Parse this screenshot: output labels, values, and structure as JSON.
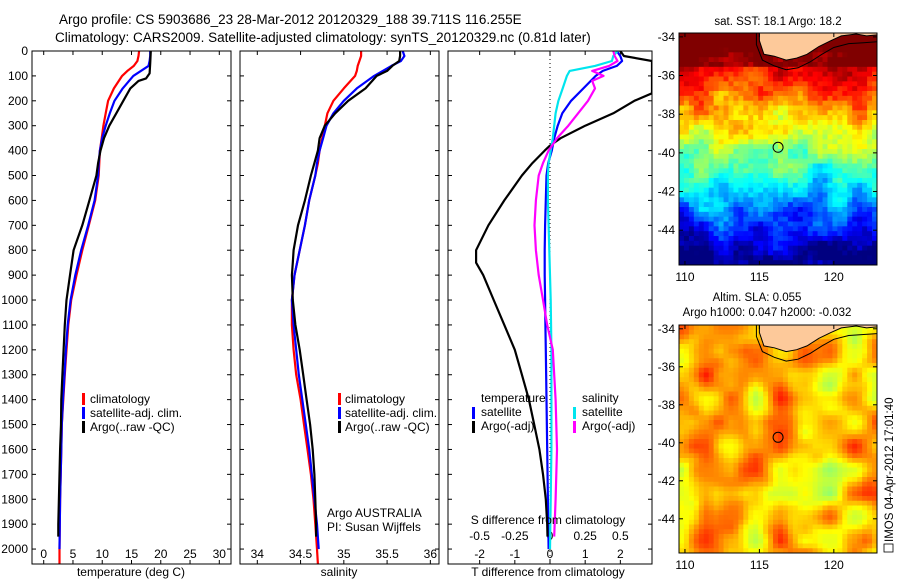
{
  "header": {
    "line1": "Argo profile: CS 5903686_23 28-Mar-2012 20120329_188 39.711S 116.255E",
    "line2": "Climatology: CARS2009. Satellite-adjusted climatology: synTS_20120329.nc (0.81d later)"
  },
  "colors": {
    "climatology": "#ff0000",
    "satellite": "#0000ff",
    "argo": "#000000",
    "sal_satellite": "#00e5ee",
    "sal_argo": "#ff00ff",
    "land": "#fdc99a"
  },
  "chart_data": [
    {
      "id": "temperature",
      "type": "line",
      "xlabel": "temperature (deg C)",
      "ylabel": "",
      "xlim": [
        -2,
        32
      ],
      "ylim": [
        2060,
        0
      ],
      "xticks": [
        0,
        5,
        10,
        15,
        20,
        25,
        30
      ],
      "yticks": [
        0,
        100,
        200,
        300,
        400,
        500,
        600,
        700,
        800,
        900,
        1000,
        1100,
        1200,
        1300,
        1400,
        1500,
        1600,
        1700,
        1800,
        1900,
        2000
      ],
      "legend": {
        "placement": "center",
        "entries": [
          "climatology",
          "satellite-adj. clim.",
          "Argo(..raw -QC)"
        ]
      },
      "series": [
        {
          "name": "climatology",
          "color_key": "climatology",
          "depth": [
            0,
            20,
            40,
            60,
            80,
            100,
            150,
            200,
            250,
            300,
            350,
            400,
            450,
            500,
            600,
            700,
            800,
            900,
            1000,
            1100,
            1200,
            1300,
            1400,
            1500,
            1600,
            1700,
            1800,
            1900,
            2000,
            2060
          ],
          "values": [
            16.3,
            16.2,
            16.0,
            15.4,
            14.3,
            13.4,
            12.0,
            11.0,
            10.6,
            10.2,
            9.9,
            9.6,
            9.5,
            9.4,
            8.8,
            7.7,
            6.6,
            5.6,
            4.7,
            4.2,
            3.9,
            3.6,
            3.35,
            3.1,
            3.0,
            2.9,
            2.8,
            2.75,
            2.7,
            2.7
          ]
        },
        {
          "name": "satellite-adj. clim.",
          "color_key": "satellite",
          "depth": [
            0,
            20,
            40,
            60,
            80,
            100,
            150,
            200,
            250,
            300,
            350,
            400,
            450,
            500,
            600,
            700,
            800,
            900,
            1000,
            1100,
            1200,
            1300,
            1400,
            1500,
            1600,
            1700,
            1800,
            1900,
            2000
          ],
          "values": [
            18.2,
            18.2,
            18.1,
            17.9,
            16.6,
            15.3,
            13.5,
            12.1,
            11.3,
            10.6,
            10.0,
            9.6,
            9.4,
            9.3,
            8.7,
            7.6,
            6.4,
            5.4,
            4.6,
            4.1,
            3.8,
            3.55,
            3.3,
            3.1,
            3.0,
            2.9,
            2.8,
            2.75,
            2.7
          ]
        },
        {
          "name": "Argo(..raw -QC)",
          "color_key": "argo",
          "depth": [
            0,
            50,
            90,
            110,
            120,
            150,
            200,
            250,
            300,
            350,
            400,
            450,
            500,
            600,
            700,
            780,
            800,
            900,
            1000,
            1100,
            1200,
            1300,
            1400,
            1500,
            1600,
            1700,
            1800,
            1900,
            1950
          ],
          "values": [
            18.3,
            18.2,
            18.1,
            17.5,
            16.2,
            14.8,
            13.6,
            12.4,
            11.2,
            10.3,
            9.7,
            9.3,
            9.0,
            7.8,
            6.6,
            5.4,
            5.1,
            4.5,
            3.9,
            3.6,
            3.4,
            3.2,
            3.0,
            2.95,
            2.8,
            2.7,
            2.6,
            2.5,
            2.5
          ]
        }
      ]
    },
    {
      "id": "salinity",
      "type": "line",
      "xlabel": "salinity",
      "xlim": [
        33.8,
        36.1
      ],
      "ylim": [
        2060,
        0
      ],
      "xticks": [
        34,
        34.5,
        35,
        35.5,
        36
      ],
      "annotation": [
        "Argo AUSTRALIA",
        "PI: Susan Wijffels"
      ],
      "legend": {
        "placement": "center-right",
        "entries": [
          "climatology",
          "satellite-adj. clim.",
          "Argo(..raw -QC)"
        ]
      },
      "series": [
        {
          "name": "climatology",
          "color_key": "climatology",
          "depth": [
            0,
            20,
            40,
            60,
            80,
            100,
            150,
            200,
            250,
            300,
            350,
            400,
            450,
            500,
            600,
            700,
            800,
            900,
            1000,
            1100,
            1200,
            1300,
            1400,
            1500,
            1600,
            1700,
            1800,
            1900,
            2000,
            2060
          ],
          "values": [
            35.2,
            35.2,
            35.18,
            35.16,
            35.15,
            35.13,
            35.0,
            34.88,
            34.81,
            34.78,
            34.75,
            34.72,
            34.7,
            34.67,
            34.6,
            34.55,
            34.49,
            34.43,
            34.4,
            34.4,
            34.42,
            34.45,
            34.5,
            34.54,
            34.58,
            34.62,
            34.65,
            34.67,
            34.69,
            34.7
          ]
        },
        {
          "name": "satellite-adj. clim.",
          "color_key": "satellite",
          "depth": [
            0,
            20,
            40,
            60,
            80,
            100,
            150,
            200,
            250,
            300,
            350,
            400,
            450,
            500,
            600,
            700,
            800,
            900,
            1000,
            1100,
            1200,
            1300,
            1400,
            1500,
            1600,
            1700,
            1800,
            1900,
            2000
          ],
          "values": [
            35.68,
            35.7,
            35.66,
            35.55,
            35.45,
            35.35,
            35.15,
            35.0,
            34.88,
            34.8,
            34.76,
            34.72,
            34.69,
            34.67,
            34.6,
            34.55,
            34.49,
            34.43,
            34.4,
            34.42,
            34.45,
            34.48,
            34.52,
            34.56,
            34.6,
            34.63,
            34.66,
            34.69,
            34.71
          ]
        },
        {
          "name": "Argo(..raw -QC)",
          "color_key": "argo",
          "depth": [
            0,
            20,
            40,
            60,
            80,
            100,
            150,
            200,
            250,
            300,
            350,
            400,
            450,
            500,
            600,
            700,
            800,
            850,
            900,
            1000,
            1100,
            1200,
            1300,
            1400,
            1500,
            1600,
            1700,
            1800,
            1900,
            1950
          ],
          "values": [
            35.65,
            35.65,
            35.64,
            35.56,
            35.5,
            35.38,
            35.25,
            35.05,
            34.9,
            34.78,
            34.72,
            34.7,
            34.66,
            34.62,
            34.55,
            34.47,
            34.42,
            34.41,
            34.4,
            34.41,
            34.44,
            34.49,
            34.53,
            34.57,
            34.61,
            34.64,
            34.66,
            34.67,
            34.68,
            34.68
          ]
        }
      ]
    },
    {
      "id": "differences",
      "type": "line",
      "xlabel": "T difference from climatology",
      "secondary_xlabel": "S difference from climatology",
      "xlim": [
        -2.9,
        2.9
      ],
      "ylim": [
        2060,
        0
      ],
      "xticks": [
        -2,
        -1,
        0,
        1,
        2
      ],
      "secondary_xticks": [
        -0.5,
        -0.25,
        0,
        0.25,
        0.5
      ],
      "secondary_xtick_labels": [
        "-0.5",
        "-0.25",
        "0",
        "0.25",
        "0.5"
      ],
      "zero_line": "dotted",
      "legend": {
        "placement": "center",
        "groups": [
          {
            "title": "temperature",
            "entries": [
              "satellite",
              "Argo(-adj)"
            ]
          },
          {
            "title": "salinity",
            "entries": [
              "satellite",
              "Argo(-adj)"
            ]
          }
        ]
      },
      "series": [
        {
          "name": "temperature satellite",
          "color_key": "satellite",
          "units": "degC",
          "depth": [
            0,
            20,
            40,
            60,
            80,
            100,
            150,
            200,
            250,
            300,
            350,
            400,
            450,
            500,
            600,
            700,
            800,
            900,
            1000,
            1100,
            1200,
            1400,
            1600,
            1800,
            2000
          ],
          "values": [
            1.9,
            2.0,
            2.05,
            1.9,
            1.5,
            1.3,
            0.95,
            0.6,
            0.35,
            0.22,
            0.12,
            0.05,
            -0.05,
            -0.1,
            -0.12,
            -0.14,
            -0.15,
            -0.15,
            -0.14,
            -0.13,
            -0.12,
            -0.1,
            -0.08,
            -0.06,
            -0.04
          ]
        },
        {
          "name": "temperature Argo(-adj)",
          "color_key": "argo",
          "units": "degC",
          "depth": [
            0,
            20,
            40,
            100,
            170,
            200,
            250,
            300,
            350,
            380,
            400,
            450,
            500,
            600,
            700,
            800,
            850,
            900,
            1000,
            1100,
            1200,
            1300,
            1400,
            1500,
            1600,
            1700,
            1800,
            1900,
            1950
          ],
          "values": [
            2.0,
            2.1,
            2.9,
            2.9,
            2.9,
            2.4,
            1.8,
            1.0,
            0.3,
            0.0,
            -0.15,
            -0.5,
            -0.8,
            -1.3,
            -1.75,
            -2.1,
            -2.1,
            -1.9,
            -1.6,
            -1.3,
            -1.0,
            -0.8,
            -0.6,
            -0.45,
            -0.3,
            -0.2,
            -0.12,
            -0.08,
            -0.07
          ]
        },
        {
          "name": "salinity satellite",
          "color_key": "sal_satellite",
          "units": "psu",
          "depth": [
            0,
            20,
            40,
            60,
            80,
            100,
            150,
            200,
            250,
            300,
            350,
            400,
            450,
            500,
            600,
            700,
            800,
            900,
            1000,
            1200,
            1400,
            1600,
            1800,
            2000
          ],
          "values": [
            0.48,
            0.45,
            0.44,
            0.32,
            0.14,
            0.12,
            0.09,
            0.06,
            0.04,
            0.03,
            0.02,
            0.005,
            -0.01,
            -0.015,
            -0.015,
            -0.01,
            -0.005,
            0.0,
            0.005,
            0.01,
            0.01,
            0.01,
            0.005,
            0.0
          ]
        },
        {
          "name": "salinity Argo(-adj)",
          "color_key": "sal_argo",
          "units": "psu",
          "depth": [
            0,
            20,
            40,
            60,
            80,
            100,
            120,
            150,
            200,
            250,
            300,
            350,
            400,
            450,
            500,
            600,
            700,
            800,
            900,
            1000,
            1100,
            1200,
            1400,
            1600,
            1800,
            1950
          ],
          "values": [
            0.45,
            0.46,
            0.48,
            0.42,
            0.3,
            0.38,
            0.3,
            0.32,
            0.27,
            0.2,
            0.13,
            0.05,
            -0.01,
            -0.05,
            -0.08,
            -0.1,
            -0.11,
            -0.1,
            -0.08,
            -0.05,
            -0.02,
            0.02,
            0.04,
            0.05,
            0.04,
            0.03
          ]
        }
      ]
    },
    {
      "id": "sst-map",
      "type": "heatmap",
      "title": "sat. SST: 18.1 Argo: 18.2",
      "xlim": [
        109.6,
        122.9
      ],
      "ylim": [
        -45.8,
        -33.8
      ],
      "xticks": [
        110,
        115,
        120
      ],
      "yticks": [
        -34,
        -36,
        -38,
        -40,
        -42,
        -44
      ],
      "marker": {
        "lon": 116.255,
        "lat": -39.711
      },
      "colormap": "jet",
      "description": "warm (dark red/orange) north of ~-38, yellow/green around -40, blue south of -42; land (Australia) at top-centre/right"
    },
    {
      "id": "sla-map",
      "type": "heatmap",
      "title": "Altim. SLA: 0.055",
      "subtitle": "Argo h1000: 0.047 h2000: -0.032",
      "xlim": [
        109.6,
        122.9
      ],
      "ylim": [
        -45.8,
        -33.8
      ],
      "xticks": [
        110,
        115,
        120
      ],
      "yticks": [
        -34,
        -36,
        -38,
        -40,
        -42,
        -44
      ],
      "marker": {
        "lon": 116.255,
        "lat": -39.711
      },
      "colormap": "jet",
      "description": "mostly green/yellow with scattered orange highs and darker green/cyan lows; land at top"
    }
  ],
  "footer": {
    "stamp": "IMOS 04-Apr-2012 17:01:40"
  }
}
